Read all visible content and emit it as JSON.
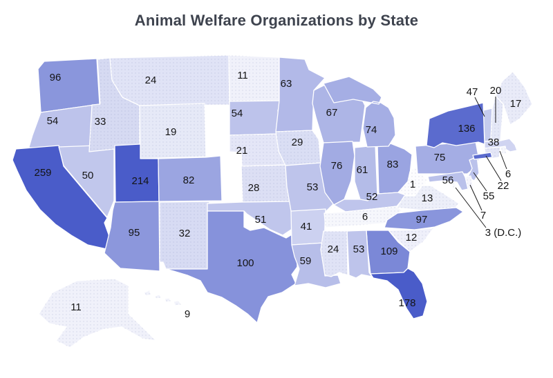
{
  "title": "Animal Welfare Organizations by State",
  "chart_data": {
    "type": "choropleth",
    "title": "Animal Welfare Organizations by State",
    "region": "USA states",
    "legend": "none",
    "background_color": "#FFFFFF",
    "label_color": "#141414",
    "title_color": "#3E434E",
    "colorscale": {
      "low_color": "#FDFDFE",
      "high_color": "#4A5CC9",
      "clamp_max": 150,
      "min_value": 0
    },
    "states": [
      {
        "abbr": "AL",
        "name": "Alabama",
        "value": 53
      },
      {
        "abbr": "AK",
        "name": "Alaska",
        "value": 11
      },
      {
        "abbr": "AZ",
        "name": "Arizona",
        "value": 95
      },
      {
        "abbr": "AR",
        "name": "Arkansas",
        "value": 41
      },
      {
        "abbr": "CA",
        "name": "California",
        "value": 259
      },
      {
        "abbr": "CO",
        "name": "Colorado",
        "value": 82
      },
      {
        "abbr": "CT",
        "name": "Connecticut",
        "value": 22
      },
      {
        "abbr": "DE",
        "name": "Delaware",
        "value": 7
      },
      {
        "abbr": "DC",
        "name": "District of Columbia",
        "value": 3,
        "label": "3 (D.C.)"
      },
      {
        "abbr": "FL",
        "name": "Florida",
        "value": 178
      },
      {
        "abbr": "GA",
        "name": "Georgia",
        "value": 109
      },
      {
        "abbr": "HI",
        "name": "Hawaii",
        "value": 9
      },
      {
        "abbr": "ID",
        "name": "Idaho",
        "value": 33
      },
      {
        "abbr": "IL",
        "name": "Illinois",
        "value": 76
      },
      {
        "abbr": "IN",
        "name": "Indiana",
        "value": 61
      },
      {
        "abbr": "IA",
        "name": "Iowa",
        "value": 29
      },
      {
        "abbr": "KS",
        "name": "Kansas",
        "value": 28
      },
      {
        "abbr": "KY",
        "name": "Kentucky",
        "value": 52
      },
      {
        "abbr": "LA",
        "name": "Louisiana",
        "value": 59
      },
      {
        "abbr": "ME",
        "name": "Maine",
        "value": 17
      },
      {
        "abbr": "MD",
        "name": "Maryland",
        "value": 56
      },
      {
        "abbr": "MA",
        "name": "Massachusetts",
        "value": 38
      },
      {
        "abbr": "MI",
        "name": "Michigan",
        "value": 74
      },
      {
        "abbr": "MN",
        "name": "Minnesota",
        "value": 63
      },
      {
        "abbr": "MS",
        "name": "Mississippi",
        "value": 24
      },
      {
        "abbr": "MO",
        "name": "Missouri",
        "value": 53
      },
      {
        "abbr": "MT",
        "name": "Montana",
        "value": 24
      },
      {
        "abbr": "NE",
        "name": "Nebraska",
        "value": 21
      },
      {
        "abbr": "NV",
        "name": "Nevada",
        "value": 50
      },
      {
        "abbr": "NH",
        "name": "New Hampshire",
        "value": 20
      },
      {
        "abbr": "NJ",
        "name": "New Jersey",
        "value": 55
      },
      {
        "abbr": "NM",
        "name": "New Mexico",
        "value": 32
      },
      {
        "abbr": "NY",
        "name": "New York",
        "value": 136
      },
      {
        "abbr": "NC",
        "name": "North Carolina",
        "value": 97
      },
      {
        "abbr": "ND",
        "name": "North Dakota",
        "value": 11
      },
      {
        "abbr": "OH",
        "name": "Ohio",
        "value": 83
      },
      {
        "abbr": "OK",
        "name": "Oklahoma",
        "value": 51
      },
      {
        "abbr": "OR",
        "name": "Oregon",
        "value": 54
      },
      {
        "abbr": "PA",
        "name": "Pennsylvania",
        "value": 75
      },
      {
        "abbr": "RI",
        "name": "Rhode Island",
        "value": 6
      },
      {
        "abbr": "SC",
        "name": "South Carolina",
        "value": 12
      },
      {
        "abbr": "SD",
        "name": "South Dakota",
        "value": 54
      },
      {
        "abbr": "TN",
        "name": "Tennessee",
        "value": 6
      },
      {
        "abbr": "TX",
        "name": "Texas",
        "value": 100
      },
      {
        "abbr": "UT",
        "name": "Utah",
        "value": 214
      },
      {
        "abbr": "VT",
        "name": "Vermont",
        "value": 47
      },
      {
        "abbr": "VA",
        "name": "Virginia",
        "value": 13
      },
      {
        "abbr": "WA",
        "name": "Washington",
        "value": 96
      },
      {
        "abbr": "WV",
        "name": "West Virginia",
        "value": 1
      },
      {
        "abbr": "WI",
        "name": "Wisconsin",
        "value": 67
      },
      {
        "abbr": "WY",
        "name": "Wyoming",
        "value": 19
      }
    ]
  }
}
